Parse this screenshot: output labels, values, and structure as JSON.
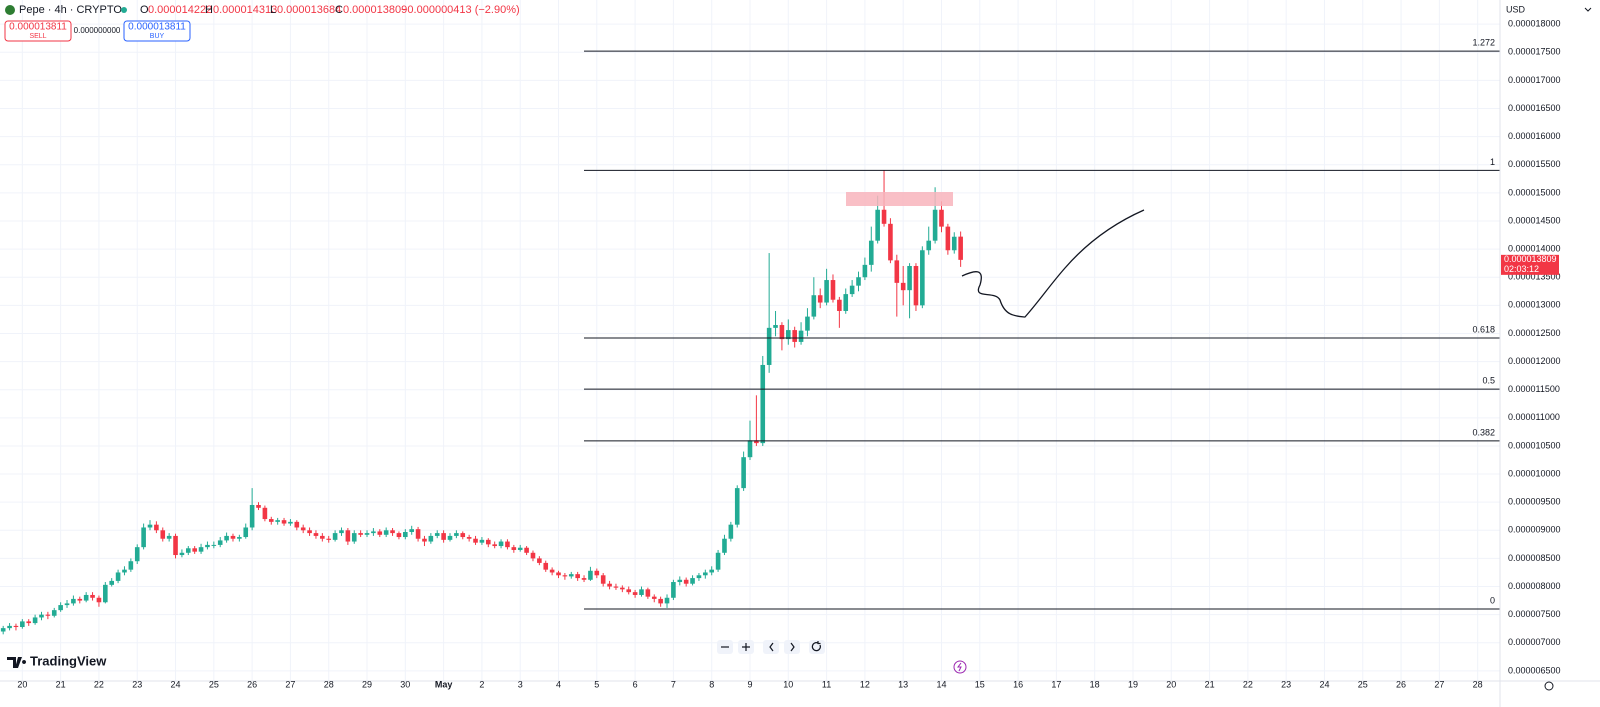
{
  "header": {
    "symbol": "Pepe · 4h · CRYPTO",
    "o_label": "O",
    "o": "0.000014222",
    "h_label": "H",
    "h": "0.000014313",
    "l_label": "L",
    "l": "0.000013684",
    "c_label": "C",
    "c": "0.000013809",
    "change": "−0.000000413 (−2.90%)",
    "sell_price": "0.000013811",
    "sell": "SELL",
    "spread": "0.000000000",
    "buy_price": "0.000013811",
    "buy": "BUY",
    "currency": "USD",
    "price_tag": "0.000013809",
    "countdown": "02:03:12",
    "logo": "TradingView"
  },
  "chart_data": {
    "type": "candlestick",
    "up_color": "#22ab94",
    "down_color": "#f23645",
    "grid": true,
    "xlim": [
      -0.5,
      234.5
    ],
    "ylim": [
      6.32e-06,
      1.843e-05
    ],
    "xticks": [
      {
        "value": 3,
        "label": "20"
      },
      {
        "value": 9,
        "label": "21"
      },
      {
        "value": 15,
        "label": "22"
      },
      {
        "value": 21,
        "label": "23"
      },
      {
        "value": 27,
        "label": "24"
      },
      {
        "value": 33,
        "label": "25"
      },
      {
        "value": 39,
        "label": "26"
      },
      {
        "value": 45,
        "label": "27"
      },
      {
        "value": 51,
        "label": "28"
      },
      {
        "value": 57,
        "label": "29"
      },
      {
        "value": 63,
        "label": "30"
      },
      {
        "value": 69,
        "label": "May"
      },
      {
        "value": 75,
        "label": "2"
      },
      {
        "value": 81,
        "label": "3"
      },
      {
        "value": 87,
        "label": "4"
      },
      {
        "value": 93,
        "label": "5"
      },
      {
        "value": 99,
        "label": "6"
      },
      {
        "value": 105,
        "label": "7"
      },
      {
        "value": 111,
        "label": "8"
      },
      {
        "value": 117,
        "label": "9"
      },
      {
        "value": 123,
        "label": "10"
      },
      {
        "value": 129,
        "label": "11"
      },
      {
        "value": 135,
        "label": "12"
      },
      {
        "value": 141,
        "label": "13"
      },
      {
        "value": 147,
        "label": "14"
      },
      {
        "value": 153,
        "label": "15"
      },
      {
        "value": 159,
        "label": "16"
      },
      {
        "value": 165,
        "label": "17"
      },
      {
        "value": 171,
        "label": "18"
      },
      {
        "value": 177,
        "label": "19"
      },
      {
        "value": 183,
        "label": "20"
      },
      {
        "value": 189,
        "label": "21"
      },
      {
        "value": 195,
        "label": "22"
      },
      {
        "value": 201,
        "label": "23"
      },
      {
        "value": 207,
        "label": "24"
      },
      {
        "value": 213,
        "label": "25"
      },
      {
        "value": 219,
        "label": "26"
      },
      {
        "value": 225,
        "label": "27"
      },
      {
        "value": 231,
        "label": "28"
      }
    ],
    "yticks": [
      {
        "value": 6.5e-06,
        "label": "0.000006500"
      },
      {
        "value": 7e-06,
        "label": "0.000007000"
      },
      {
        "value": 7.5e-06,
        "label": "0.000007500"
      },
      {
        "value": 8e-06,
        "label": "0.000008000"
      },
      {
        "value": 8.5e-06,
        "label": "0.000008500"
      },
      {
        "value": 9e-06,
        "label": "0.000009000"
      },
      {
        "value": 9.5e-06,
        "label": "0.000009500"
      },
      {
        "value": 1e-05,
        "label": "0.000010000"
      },
      {
        "value": 1.05e-05,
        "label": "0.000010500"
      },
      {
        "value": 1.1e-05,
        "label": "0.000011000"
      },
      {
        "value": 1.15e-05,
        "label": "0.000011500"
      },
      {
        "value": 1.2e-05,
        "label": "0.000012000"
      },
      {
        "value": 1.25e-05,
        "label": "0.000012500"
      },
      {
        "value": 1.3e-05,
        "label": "0.000013000"
      },
      {
        "value": 1.35e-05,
        "label": "0.000013500"
      },
      {
        "value": 1.4e-05,
        "label": "0.000014000"
      },
      {
        "value": 1.45e-05,
        "label": "0.000014500"
      },
      {
        "value": 1.5e-05,
        "label": "0.000015000"
      },
      {
        "value": 1.55e-05,
        "label": "0.000015500"
      },
      {
        "value": 1.6e-05,
        "label": "0.000016000"
      },
      {
        "value": 1.65e-05,
        "label": "0.000016500"
      },
      {
        "value": 1.7e-05,
        "label": "0.000017000"
      },
      {
        "value": 1.75e-05,
        "label": "0.000017500"
      },
      {
        "value": 1.8e-05,
        "label": "0.000018000"
      }
    ],
    "fib_levels": [
      {
        "ratio": 1.272,
        "price": 1.752e-05
      },
      {
        "ratio": 1,
        "price": 1.54e-05
      },
      {
        "ratio": 0.618,
        "price": 1.242e-05
      },
      {
        "ratio": 0.5,
        "price": 1.151e-05
      },
      {
        "ratio": 0.382,
        "price": 1.059e-05
      },
      {
        "ratio": 0,
        "price": 7.6e-06
      }
    ],
    "candles": [
      [
        7.2e-06,
        7.3e-06,
        7.15e-06,
        7.26e-06
      ],
      [
        7.26e-06,
        7.35e-06,
        7.22e-06,
        7.3e-06
      ],
      [
        7.3e-06,
        7.34e-06,
        7.22e-06,
        7.28e-06
      ],
      [
        7.28e-06,
        7.42e-06,
        7.25e-06,
        7.38e-06
      ],
      [
        7.38e-06,
        7.42e-06,
        7.3e-06,
        7.35e-06
      ],
      [
        7.35e-06,
        7.5e-06,
        7.32e-06,
        7.45e-06
      ],
      [
        7.45e-06,
        7.55e-06,
        7.4e-06,
        7.5e-06
      ],
      [
        7.5e-06,
        7.55e-06,
        7.42e-06,
        7.48e-06
      ],
      [
        7.48e-06,
        7.62e-06,
        7.45e-06,
        7.58e-06
      ],
      [
        7.58e-06,
        7.72e-06,
        7.55e-06,
        7.67e-06
      ],
      [
        7.67e-06,
        7.76e-06,
        7.62e-06,
        7.7e-06
      ],
      [
        7.7e-06,
        7.84e-06,
        7.66e-06,
        7.78e-06
      ],
      [
        7.78e-06,
        7.82e-06,
        7.7e-06,
        7.75e-06
      ],
      [
        7.75e-06,
        7.9e-06,
        7.72e-06,
        7.85e-06
      ],
      [
        7.85e-06,
        7.9e-06,
        7.75e-06,
        7.8e-06
      ],
      [
        7.8e-06,
        7.84e-06,
        7.64e-06,
        7.72e-06
      ],
      [
        7.72e-06,
        8.08e-06,
        7.7e-06,
        8.03e-06
      ],
      [
        8.03e-06,
        8.15e-06,
        8e-06,
        8.1e-06
      ],
      [
        8.1e-06,
        8.3e-06,
        8.06e-06,
        8.25e-06
      ],
      [
        8.25e-06,
        8.36e-06,
        8.2e-06,
        8.3e-06
      ],
      [
        8.3e-06,
        8.5e-06,
        8.26e-06,
        8.45e-06
      ],
      [
        8.45e-06,
        8.75e-06,
        8.4e-06,
        8.7e-06
      ],
      [
        8.7e-06,
        9.12e-06,
        8.66e-06,
        9.05e-06
      ],
      [
        9.05e-06,
        9.18e-06,
        9e-06,
        9.1e-06
      ],
      [
        9.1e-06,
        9.16e-06,
        8.95e-06,
        9e-06
      ],
      [
        9e-06,
        9.05e-06,
        8.8e-06,
        8.85e-06
      ],
      [
        8.85e-06,
        8.95e-06,
        8.8e-06,
        8.9e-06
      ],
      [
        8.9e-06,
        8.94e-06,
        8.5e-06,
        8.56e-06
      ],
      [
        8.56e-06,
        8.66e-06,
        8.52e-06,
        8.6e-06
      ],
      [
        8.6e-06,
        8.72e-06,
        8.56e-06,
        8.68e-06
      ],
      [
        8.68e-06,
        8.72e-06,
        8.58e-06,
        8.62e-06
      ],
      [
        8.62e-06,
        8.76e-06,
        8.58e-06,
        8.7e-06
      ],
      [
        8.7e-06,
        8.8e-06,
        8.66e-06,
        8.74e-06
      ],
      [
        8.74e-06,
        8.8e-06,
        8.68e-06,
        8.74e-06
      ],
      [
        8.74e-06,
        8.88e-06,
        8.7e-06,
        8.82e-06
      ],
      [
        8.82e-06,
        8.96e-06,
        8.78e-06,
        8.9e-06
      ],
      [
        8.9e-06,
        8.94e-06,
        8.8e-06,
        8.85e-06
      ],
      [
        8.85e-06,
        8.92e-06,
        8.8e-06,
        8.88e-06
      ],
      [
        8.88e-06,
        9.12e-06,
        8.85e-06,
        9.05e-06
      ],
      [
        9.05e-06,
        9.75e-06,
        9e-06,
        9.45e-06
      ],
      [
        9.45e-06,
        9.5e-06,
        9.36e-06,
        9.4e-06
      ],
      [
        9.4e-06,
        9.44e-06,
        9.16e-06,
        9.2e-06
      ],
      [
        9.2e-06,
        9.24e-06,
        9.1e-06,
        9.15e-06
      ],
      [
        9.15e-06,
        9.22e-06,
        9.1e-06,
        9.18e-06
      ],
      [
        9.18e-06,
        9.22e-06,
        9.08e-06,
        9.12e-06
      ],
      [
        9.12e-06,
        9.2e-06,
        9.08e-06,
        9.15e-06
      ],
      [
        9.15e-06,
        9.18e-06,
        9e-06,
        9.05e-06
      ],
      [
        9.05e-06,
        9.1e-06,
        8.95e-06,
        9e-06
      ],
      [
        9e-06,
        9.05e-06,
        8.9e-06,
        8.95e-06
      ],
      [
        8.95e-06,
        9e-06,
        8.85e-06,
        8.9e-06
      ],
      [
        8.9e-06,
        8.95e-06,
        8.8e-06,
        8.85e-06
      ],
      [
        8.85e-06,
        8.9e-06,
        8.78e-06,
        8.83e-06
      ],
      [
        8.83e-06,
        9e-06,
        8.8e-06,
        8.95e-06
      ],
      [
        8.95e-06,
        9.05e-06,
        8.9e-06,
        9e-06
      ],
      [
        9e-06,
        9.04e-06,
        8.74e-06,
        8.8e-06
      ],
      [
        8.8e-06,
        9e-06,
        8.76e-06,
        8.95e-06
      ],
      [
        8.95e-06,
        9e-06,
        8.88e-06,
        8.92e-06
      ],
      [
        8.92e-06,
        9e-06,
        8.88e-06,
        8.95e-06
      ],
      [
        8.95e-06,
        9.04e-06,
        8.9e-06,
        8.98e-06
      ],
      [
        8.98e-06,
        9.02e-06,
        8.88e-06,
        8.92e-06
      ],
      [
        8.92e-06,
        9.05e-06,
        8.88e-06,
        9e-06
      ],
      [
        9e-06,
        9.04e-06,
        8.9e-06,
        8.95e-06
      ],
      [
        8.95e-06,
        8.98e-06,
        8.84e-06,
        8.88e-06
      ],
      [
        8.88e-06,
        9.02e-06,
        8.84e-06,
        8.97e-06
      ],
      [
        8.97e-06,
        9.08e-06,
        8.92e-06,
        9.02e-06
      ],
      [
        9.02e-06,
        9.06e-06,
        8.8e-06,
        8.85e-06
      ],
      [
        8.85e-06,
        8.9e-06,
        8.72e-06,
        8.8e-06
      ],
      [
        8.8e-06,
        8.95e-06,
        8.76e-06,
        8.9e-06
      ],
      [
        8.9e-06,
        9e-06,
        8.86e-06,
        8.95e-06
      ],
      [
        8.95e-06,
        9e-06,
        8.78e-06,
        8.83e-06
      ],
      [
        8.83e-06,
        8.95e-06,
        8.8e-06,
        8.9e-06
      ],
      [
        8.9e-06,
        9e-06,
        8.86e-06,
        8.95e-06
      ],
      [
        8.95e-06,
        8.98e-06,
        8.84e-06,
        8.88e-06
      ],
      [
        8.88e-06,
        8.92e-06,
        8.8e-06,
        8.85e-06
      ],
      [
        8.85e-06,
        8.9e-06,
        8.74e-06,
        8.78e-06
      ],
      [
        8.78e-06,
        8.88e-06,
        8.74e-06,
        8.83e-06
      ],
      [
        8.83e-06,
        8.86e-06,
        8.7e-06,
        8.75e-06
      ],
      [
        8.75e-06,
        8.8e-06,
        8.68e-06,
        8.72e-06
      ],
      [
        8.72e-06,
        8.84e-06,
        8.68e-06,
        8.8e-06
      ],
      [
        8.8e-06,
        8.84e-06,
        8.66e-06,
        8.7e-06
      ],
      [
        8.7e-06,
        8.74e-06,
        8.6e-06,
        8.65e-06
      ],
      [
        8.65e-06,
        8.74e-06,
        8.62e-06,
        8.69e-06
      ],
      [
        8.69e-06,
        8.72e-06,
        8.56e-06,
        8.6e-06
      ],
      [
        8.6e-06,
        8.64e-06,
        8.45e-06,
        8.5e-06
      ],
      [
        8.5e-06,
        8.54e-06,
        8.38e-06,
        8.42e-06
      ],
      [
        8.42e-06,
        8.46e-06,
        8.26e-06,
        8.3e-06
      ],
      [
        8.3e-06,
        8.34e-06,
        8.2e-06,
        8.25e-06
      ],
      [
        8.25e-06,
        8.28e-06,
        8.15e-06,
        8.2e-06
      ],
      [
        8.2e-06,
        8.24e-06,
        8.12e-06,
        8.18e-06
      ],
      [
        8.18e-06,
        8.26e-06,
        8.14e-06,
        8.22e-06
      ],
      [
        8.22e-06,
        8.26e-06,
        8.1e-06,
        8.15e-06
      ],
      [
        8.15e-06,
        8.2e-06,
        8.08e-06,
        8.12e-06
      ],
      [
        8.12e-06,
        8.35e-06,
        8.1e-06,
        8.28e-06
      ],
      [
        8.28e-06,
        8.32e-06,
        8.15e-06,
        8.2e-06
      ],
      [
        8.2e-06,
        8.24e-06,
        8e-06,
        8.05e-06
      ],
      [
        8.05e-06,
        8.1e-06,
        7.95e-06,
        8e-06
      ],
      [
        8e-06,
        8.05e-06,
        7.94e-06,
        7.98e-06
      ],
      [
        7.98e-06,
        8.02e-06,
        7.9e-06,
        7.95e-06
      ],
      [
        7.95e-06,
        8e-06,
        7.86e-06,
        7.9e-06
      ],
      [
        7.9e-06,
        7.94e-06,
        7.8e-06,
        7.85e-06
      ],
      [
        7.85e-06,
        8e-06,
        7.82e-06,
        7.95e-06
      ],
      [
        7.95e-06,
        7.98e-06,
        7.78e-06,
        7.82e-06
      ],
      [
        7.82e-06,
        7.86e-06,
        7.72e-06,
        7.78e-06
      ],
      [
        7.78e-06,
        7.82e-06,
        7.64e-06,
        7.7e-06
      ],
      [
        7.7e-06,
        7.86e-06,
        7.62e-06,
        7.8e-06
      ],
      [
        7.8e-06,
        8.12e-06,
        7.76e-06,
        8.08e-06
      ],
      [
        8.08e-06,
        8.18e-06,
        8.02e-06,
        8.12e-06
      ],
      [
        8.12e-06,
        8.16e-06,
        8e-06,
        8.05e-06
      ],
      [
        8.05e-06,
        8.2e-06,
        8.02e-06,
        8.15e-06
      ],
      [
        8.15e-06,
        8.24e-06,
        8.1e-06,
        8.2e-06
      ],
      [
        8.2e-06,
        8.3e-06,
        8.14e-06,
        8.25e-06
      ],
      [
        8.25e-06,
        8.36e-06,
        8.2e-06,
        8.3e-06
      ],
      [
        8.3e-06,
        8.65e-06,
        8.26e-06,
        8.6e-06
      ],
      [
        8.6e-06,
        8.92e-06,
        8.56e-06,
        8.85e-06
      ],
      [
        8.85e-06,
        9.15e-06,
        8.8e-06,
        9.1e-06
      ],
      [
        9.1e-06,
        9.8e-06,
        9.05e-06,
        9.75e-06
      ],
      [
        9.75e-06,
        1.04e-05,
        9.7e-06,
        1.03e-05
      ],
      [
        1.03e-05,
        1.095e-05,
        1.025e-05,
        1.06e-05
      ],
      [
        1.06e-05,
        1.14e-05,
        1.05e-05,
        1.055e-05
      ],
      [
        1.055e-05,
        1.21e-05,
        1.05e-05,
        1.194e-05
      ],
      [
        1.194e-05,
        1.393e-05,
        1.18e-05,
        1.26e-05
      ],
      [
        1.26e-05,
        1.29e-05,
        1.245e-05,
        1.265e-05
      ],
      [
        1.265e-05,
        1.27e-05,
        1.22e-05,
        1.24e-05
      ],
      [
        1.24e-05,
        1.275e-05,
        1.23e-05,
        1.256e-05
      ],
      [
        1.256e-05,
        1.262e-05,
        1.225e-05,
        1.235e-05
      ],
      [
        1.235e-05,
        1.27e-05,
        1.23e-05,
        1.255e-05
      ],
      [
        1.255e-05,
        1.295e-05,
        1.245e-05,
        1.28e-05
      ],
      [
        1.28e-05,
        1.35e-05,
        1.275e-05,
        1.318e-05
      ],
      [
        1.318e-05,
        1.33e-05,
        1.295e-05,
        1.305e-05
      ],
      [
        1.305e-05,
        1.365e-05,
        1.3e-05,
        1.345e-05
      ],
      [
        1.345e-05,
        1.355e-05,
        1.305e-05,
        1.31e-05
      ],
      [
        1.31e-05,
        1.315e-05,
        1.26e-05,
        1.29e-05
      ],
      [
        1.29e-05,
        1.33e-05,
        1.285e-05,
        1.32e-05
      ],
      [
        1.32e-05,
        1.345e-05,
        1.315e-05,
        1.335e-05
      ],
      [
        1.335e-05,
        1.36e-05,
        1.325e-05,
        1.35e-05
      ],
      [
        1.35e-05,
        1.385e-05,
        1.345e-05,
        1.372e-05
      ],
      [
        1.372e-05,
        1.44e-05,
        1.36e-05,
        1.415e-05
      ],
      [
        1.415e-05,
        1.495e-05,
        1.41e-05,
        1.47e-05
      ],
      [
        1.47e-05,
        1.54e-05,
        1.44e-05,
        1.445e-05
      ],
      [
        1.445e-05,
        1.455e-05,
        1.375e-05,
        1.38e-05
      ],
      [
        1.38e-05,
        1.39e-05,
        1.28e-05,
        1.34e-05
      ],
      [
        1.34e-05,
        1.37e-05,
        1.3e-05,
        1.327e-05
      ],
      [
        1.327e-05,
        1.375e-05,
        1.277e-05,
        1.37e-05
      ],
      [
        1.37e-05,
        1.375e-05,
        1.29e-05,
        1.3e-05
      ],
      [
        1.3e-05,
        1.405e-05,
        1.295e-05,
        1.398e-05
      ],
      [
        1.398e-05,
        1.44e-05,
        1.39e-05,
        1.415e-05
      ],
      [
        1.415e-05,
        1.51e-05,
        1.41e-05,
        1.47e-05
      ],
      [
        1.47e-05,
        1.485e-05,
        1.43e-05,
        1.44e-05
      ],
      [
        1.44e-05,
        1.445e-05,
        1.39e-05,
        1.398e-05
      ],
      [
        1.398e-05,
        1.43e-05,
        1.392e-05,
        1.422e-05
      ],
      [
        1.4222e-05,
        1.4313e-05,
        1.3684e-05,
        1.3809e-05
      ]
    ]
  }
}
